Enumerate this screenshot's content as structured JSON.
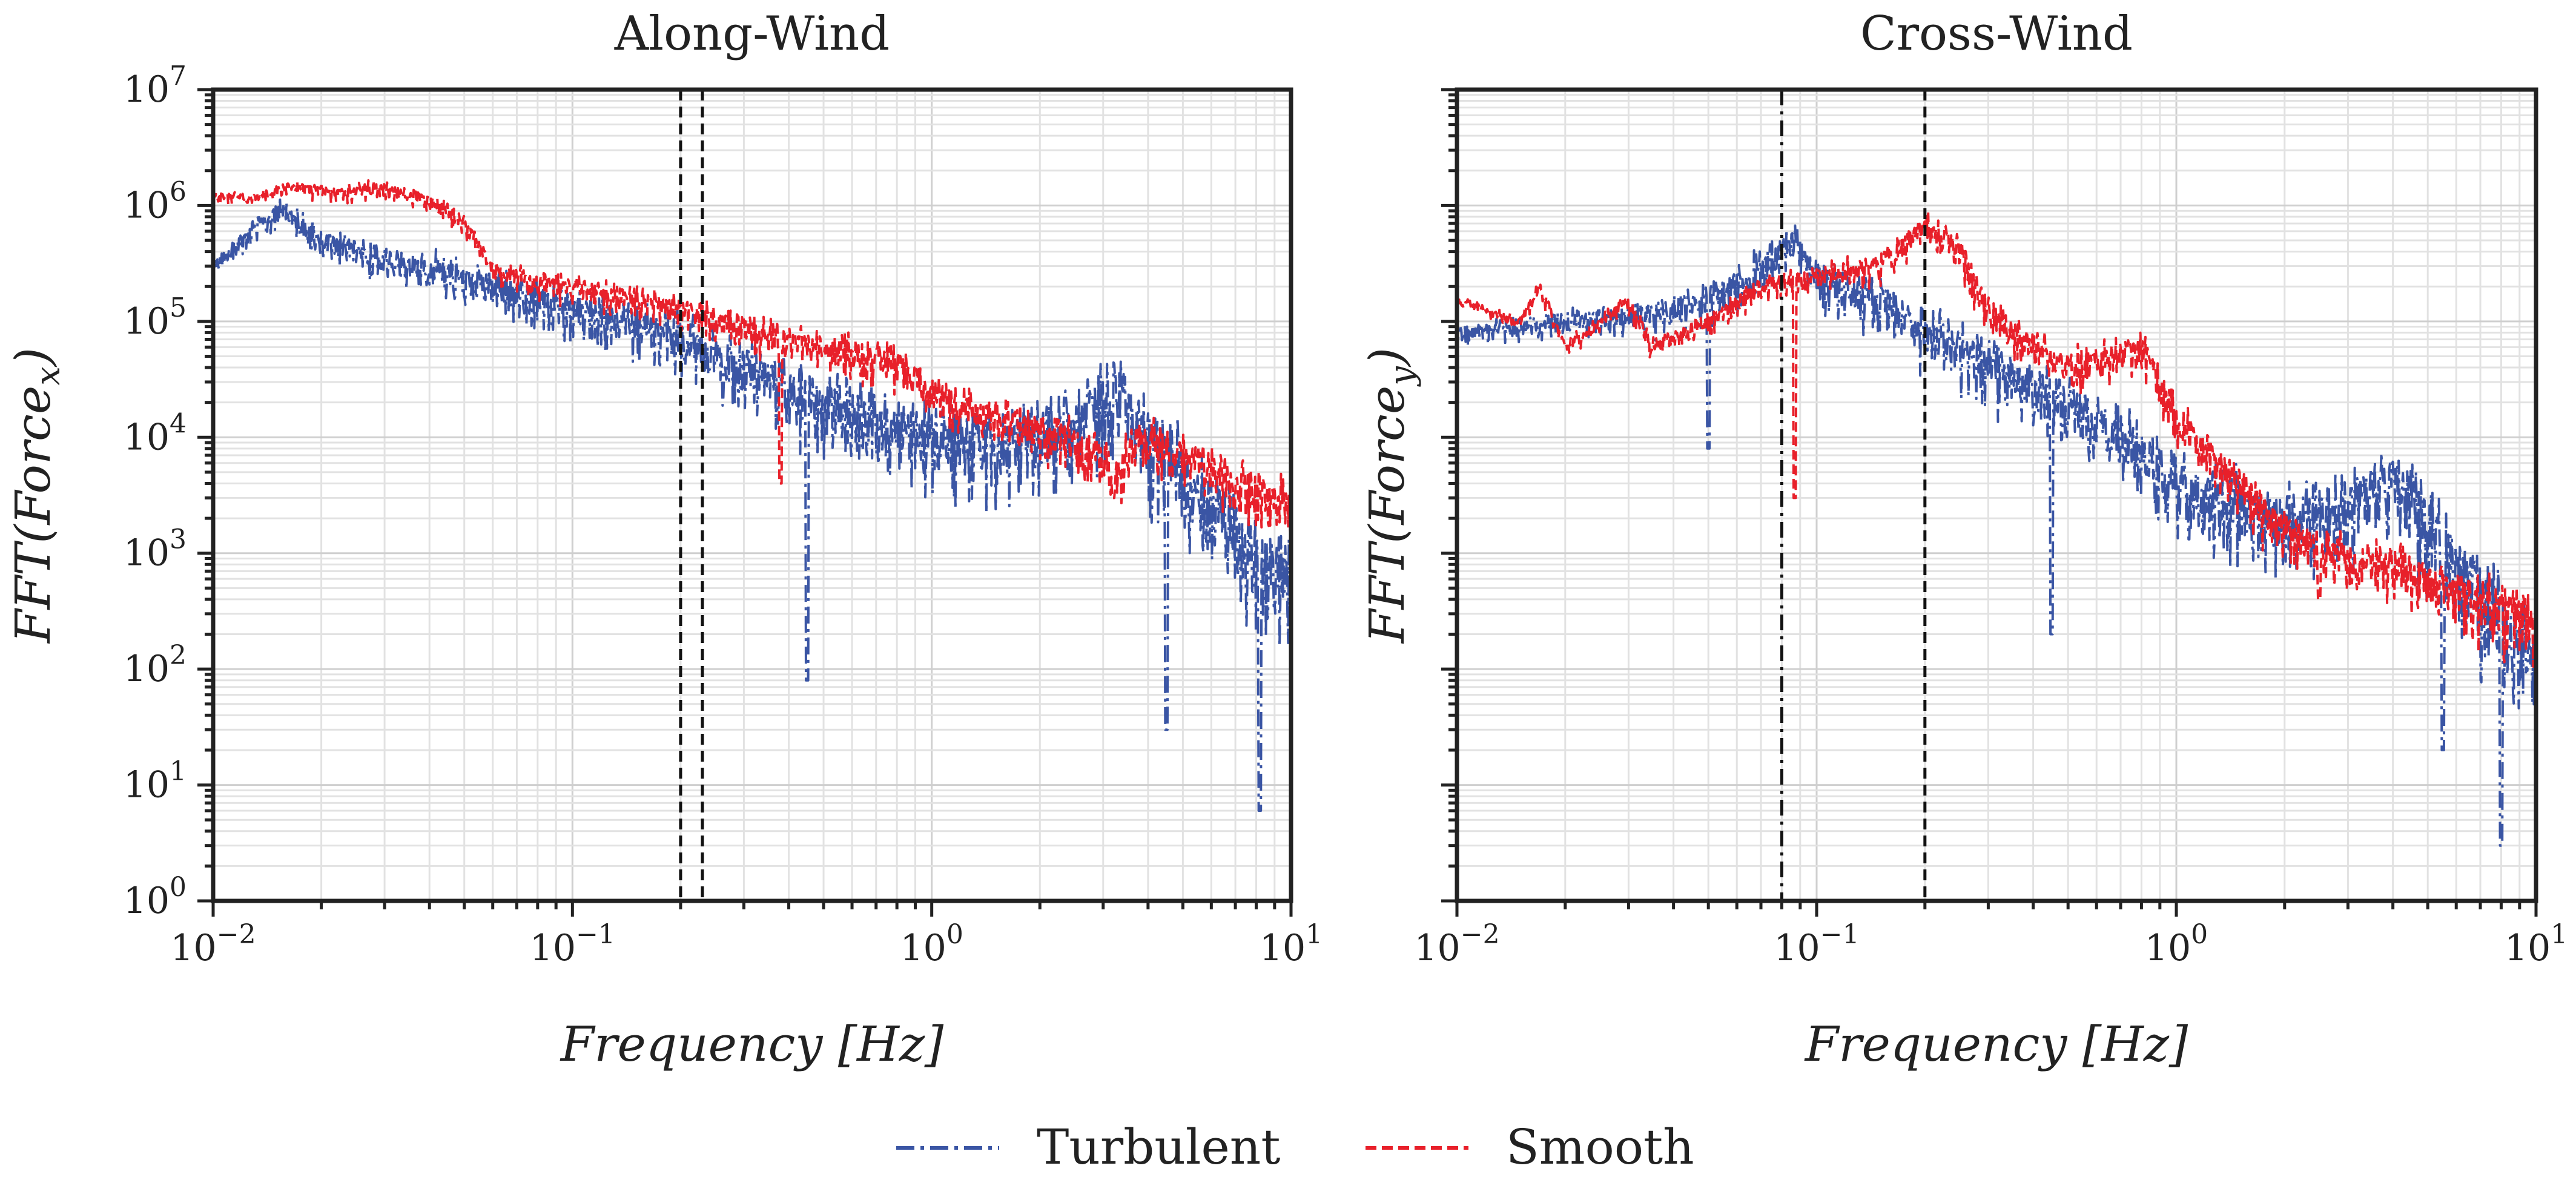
{
  "chart_data": [
    {
      "type": "line",
      "title": "Along-Wind",
      "xlabel": "Frequency [Hz]",
      "ylabel": "FFT(Force",
      "ylabel_sub": "x",
      "xscale": "log",
      "yscale": "log",
      "xlim": [
        0.01,
        10
      ],
      "ylim": [
        1,
        10000000
      ],
      "grid": true,
      "x_ticks": [
        {
          "base": "10",
          "exp": "−2",
          "value": 0.01
        },
        {
          "base": "10",
          "exp": "−1",
          "value": 0.1
        },
        {
          "base": "10",
          "exp": "0",
          "value": 1
        },
        {
          "base": "10",
          "exp": "1",
          "value": 10
        }
      ],
      "y_ticks": [
        {
          "base": "10",
          "exp": "0",
          "value": 1
        },
        {
          "base": "10",
          "exp": "1",
          "value": 10
        },
        {
          "base": "10",
          "exp": "2",
          "value": 100
        },
        {
          "base": "10",
          "exp": "3",
          "value": 1000
        },
        {
          "base": "10",
          "exp": "4",
          "value": 10000
        },
        {
          "base": "10",
          "exp": "5",
          "value": 100000
        },
        {
          "base": "10",
          "exp": "6",
          "value": 1000000
        },
        {
          "base": "10",
          "exp": "7",
          "value": 10000000
        }
      ],
      "vlines": [
        {
          "x": 0.2,
          "style": "dashed"
        },
        {
          "x": 0.23,
          "style": "dashed"
        }
      ],
      "series": [
        {
          "name": "Turbulent",
          "color": "#3a55a4",
          "style": "dashdot",
          "trend": [
            [
              0.01,
              300000
            ],
            [
              0.012,
              500000
            ],
            [
              0.0155,
              1000000
            ],
            [
              0.02,
              500000
            ],
            [
              0.03,
              350000
            ],
            [
              0.05,
              250000
            ],
            [
              0.1,
              130000
            ],
            [
              0.2,
              70000
            ],
            [
              0.3,
              40000
            ],
            [
              0.5,
              20000
            ],
            [
              0.8,
              12000
            ],
            [
              1.5,
              8000
            ],
            [
              2.5,
              12000
            ],
            [
              3.3,
              25000
            ],
            [
              4,
              10000
            ],
            [
              6,
              2500
            ],
            [
              8,
              1000
            ],
            [
              10,
              500
            ]
          ],
          "spread": 0.9,
          "dips": [
            [
              0.45,
              80
            ],
            [
              8.2,
              6
            ],
            [
              4.5,
              30
            ]
          ]
        },
        {
          "name": "Smooth",
          "color": "#e8202a",
          "style": "dashed",
          "trend": [
            [
              0.01,
              1200000
            ],
            [
              0.013,
              1200000
            ],
            [
              0.017,
              1450000
            ],
            [
              0.022,
              1300000
            ],
            [
              0.03,
              1450000
            ],
            [
              0.04,
              1100000
            ],
            [
              0.05,
              700000
            ],
            [
              0.06,
              300000
            ],
            [
              0.08,
              220000
            ],
            [
              0.1,
              200000
            ],
            [
              0.2,
              130000
            ],
            [
              0.3,
              90000
            ],
            [
              0.5,
              60000
            ],
            [
              0.8,
              45000
            ],
            [
              1,
              25000
            ],
            [
              1.5,
              15000
            ],
            [
              2,
              12000
            ],
            [
              3,
              7000
            ],
            [
              3.3,
              5000
            ],
            [
              3.6,
              9000
            ],
            [
              4,
              9500
            ],
            [
              6,
              5000
            ],
            [
              10,
              2500
            ]
          ],
          "spread": 0.45,
          "dips": [
            [
              0.38,
              4000
            ],
            [
              3.2,
              3000
            ]
          ]
        }
      ]
    },
    {
      "type": "line",
      "title": "Cross-Wind",
      "xlabel": "Frequency [Hz]",
      "ylabel": "FFT(Force",
      "ylabel_sub": "y",
      "xscale": "log",
      "yscale": "log",
      "xlim": [
        0.01,
        10
      ],
      "ylim": [
        1,
        10000000
      ],
      "grid": true,
      "x_ticks": [
        {
          "base": "10",
          "exp": "−2",
          "value": 0.01
        },
        {
          "base": "10",
          "exp": "−1",
          "value": 0.1
        },
        {
          "base": "10",
          "exp": "0",
          "value": 1
        },
        {
          "base": "10",
          "exp": "1",
          "value": 10
        }
      ],
      "vlines": [
        {
          "x": 0.08,
          "style": "dashdot"
        },
        {
          "x": 0.2,
          "style": "dashed"
        }
      ],
      "series": [
        {
          "name": "Turbulent",
          "color": "#3a55a4",
          "style": "dashdot",
          "trend": [
            [
              0.01,
              80000
            ],
            [
              0.02,
              100000
            ],
            [
              0.04,
              120000
            ],
            [
              0.06,
              200000
            ],
            [
              0.075,
              350000
            ],
            [
              0.085,
              500000
            ],
            [
              0.1,
              250000
            ],
            [
              0.15,
              150000
            ],
            [
              0.2,
              80000
            ],
            [
              0.3,
              45000
            ],
            [
              0.5,
              20000
            ],
            [
              0.8,
              8000
            ],
            [
              1,
              4000
            ],
            [
              1.5,
              2500
            ],
            [
              2,
              2000
            ],
            [
              3,
              2500
            ],
            [
              4,
              4000
            ],
            [
              5,
              2000
            ],
            [
              7,
              400
            ],
            [
              10,
              150
            ]
          ],
          "spread": 0.85,
          "dips": [
            [
              0.05,
              8000
            ],
            [
              0.45,
              200
            ],
            [
              8,
              3
            ],
            [
              5.5,
              20
            ]
          ]
        },
        {
          "name": "Smooth",
          "color": "#e8202a",
          "style": "dashed",
          "trend": [
            [
              0.01,
              150000
            ],
            [
              0.015,
              100000
            ],
            [
              0.017,
              200000
            ],
            [
              0.02,
              60000
            ],
            [
              0.03,
              150000
            ],
            [
              0.035,
              60000
            ],
            [
              0.05,
              100000
            ],
            [
              0.07,
              200000
            ],
            [
              0.1,
              250000
            ],
            [
              0.15,
              300000
            ],
            [
              0.2,
              700000
            ],
            [
              0.25,
              400000
            ],
            [
              0.3,
              120000
            ],
            [
              0.5,
              40000
            ],
            [
              0.8,
              60000
            ],
            [
              1,
              15000
            ],
            [
              1.5,
              4000
            ],
            [
              2,
              1500
            ],
            [
              3,
              900
            ],
            [
              5,
              600
            ],
            [
              7,
              400
            ],
            [
              10,
              250
            ]
          ],
          "spread": 0.5,
          "dips": [
            [
              0.087,
              3000
            ],
            [
              2.5,
              400
            ]
          ]
        }
      ]
    }
  ],
  "legend": {
    "position": "bottom-center",
    "items": [
      {
        "label": "Turbulent",
        "color": "#3a55a4",
        "style": "dashdot"
      },
      {
        "label": "Smooth",
        "color": "#e8202a",
        "style": "dashed"
      }
    ]
  }
}
